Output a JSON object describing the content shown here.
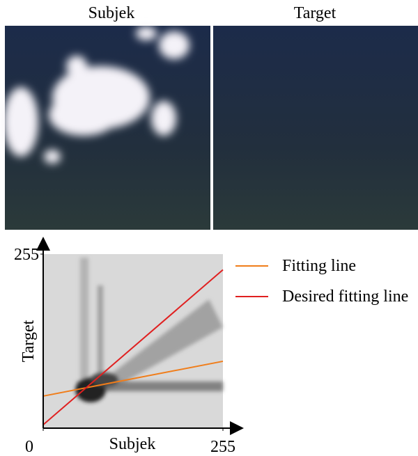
{
  "images": [
    {
      "label": "Subjek"
    },
    {
      "label": "Target"
    }
  ],
  "chart_data": {
    "type": "line",
    "xlabel": "Subjek",
    "ylabel": "Target",
    "x": [
      0,
      255
    ],
    "series": [
      {
        "name": "Fitting line",
        "color": "#f07d1a",
        "values": [
          47,
          98
        ]
      },
      {
        "name": "Desired fitting line",
        "color": "#e02020",
        "values": [
          5,
          232
        ]
      }
    ],
    "xlim": [
      0,
      255
    ],
    "ylim": [
      0,
      255
    ],
    "xticks": [
      0,
      255
    ],
    "yticks": [
      255
    ],
    "grid": false
  }
}
